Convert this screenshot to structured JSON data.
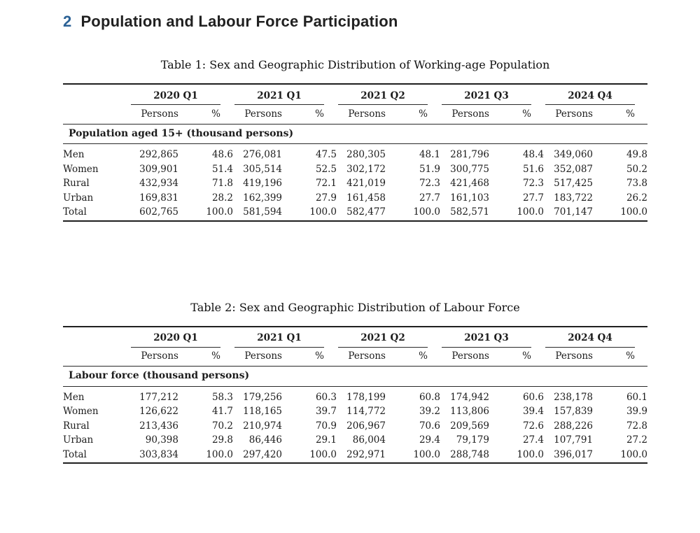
{
  "page": {
    "heading_number": "2",
    "heading_text": "Population and Labour Force Participation"
  },
  "colors": {
    "accent_blue": "#2c6296",
    "text": "#1c1c1c",
    "rule": "#1f1f1f"
  },
  "col_headers": {
    "persons": "Persons",
    "percent": "%"
  },
  "tables": [
    {
      "caption": "Table 1: Sex and Geographic Distribution of Working-age Population",
      "section_label": "Population aged 15+ (thousand persons)",
      "quarters": [
        "2020 Q1",
        "2021 Q1",
        "2021 Q2",
        "2021 Q3",
        "2024 Q4"
      ],
      "rows": [
        {
          "label": "Men",
          "values": [
            "292,865",
            "48.6",
            "276,081",
            "47.5",
            "280,305",
            "48.1",
            "281,796",
            "48.4",
            "349,060",
            "49.8"
          ]
        },
        {
          "label": "Women",
          "values": [
            "309,901",
            "51.4",
            "305,514",
            "52.5",
            "302,172",
            "51.9",
            "300,775",
            "51.6",
            "352,087",
            "50.2"
          ]
        },
        {
          "label": "Rural",
          "values": [
            "432,934",
            "71.8",
            "419,196",
            "72.1",
            "421,019",
            "72.3",
            "421,468",
            "72.3",
            "517,425",
            "73.8"
          ]
        },
        {
          "label": "Urban",
          "values": [
            "169,831",
            "28.2",
            "162,399",
            "27.9",
            "161,458",
            "27.7",
            "161,103",
            "27.7",
            "183,722",
            "26.2"
          ]
        },
        {
          "label": "Total",
          "values": [
            "602,765",
            "100.0",
            "581,594",
            "100.0",
            "582,477",
            "100.0",
            "582,571",
            "100.0",
            "701,147",
            "100.0"
          ]
        }
      ]
    },
    {
      "caption": "Table 2: Sex and Geographic Distribution of Labour Force",
      "section_label": "Labour force (thousand persons)",
      "quarters": [
        "2020 Q1",
        "2021 Q1",
        "2021 Q2",
        "2021 Q3",
        "2024 Q4"
      ],
      "rows": [
        {
          "label": "Men",
          "values": [
            "177,212",
            "58.3",
            "179,256",
            "60.3",
            "178,199",
            "60.8",
            "174,942",
            "60.6",
            "238,178",
            "60.1"
          ]
        },
        {
          "label": "Women",
          "values": [
            "126,622",
            "41.7",
            "118,165",
            "39.7",
            "114,772",
            "39.2",
            "113,806",
            "39.4",
            "157,839",
            "39.9"
          ]
        },
        {
          "label": "Rural",
          "values": [
            "213,436",
            "70.2",
            "210,974",
            "70.9",
            "206,967",
            "70.6",
            "209,569",
            "72.6",
            "288,226",
            "72.8"
          ]
        },
        {
          "label": "Urban",
          "values": [
            "90,398",
            "29.8",
            "86,446",
            "29.1",
            "86,004",
            "29.4",
            "79,179",
            "27.4",
            "107,791",
            "27.2"
          ]
        },
        {
          "label": "Total",
          "values": [
            "303,834",
            "100.0",
            "297,420",
            "100.0",
            "292,971",
            "100.0",
            "288,748",
            "100.0",
            "396,017",
            "100.0"
          ]
        }
      ]
    }
  ]
}
